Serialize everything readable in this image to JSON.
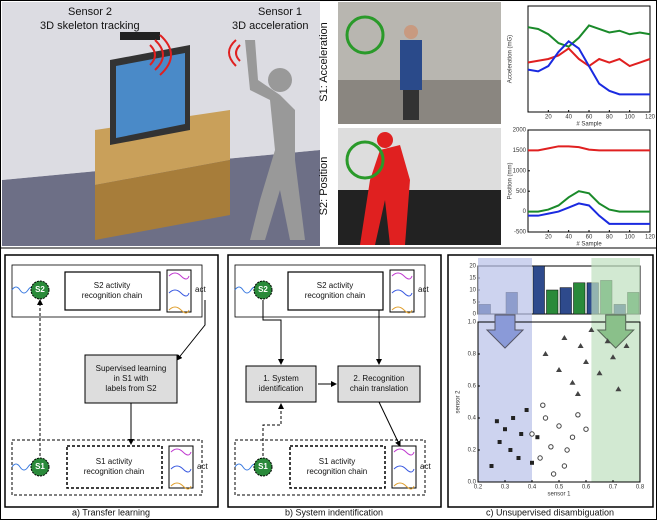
{
  "scene": {
    "sensor2": "Sensor 2",
    "sensor2_desc": "3D skeleton tracking",
    "sensor1": "Sensor 1",
    "sensor1_desc": "3D acceleration"
  },
  "photos": {
    "s1": "S1: Acceleration",
    "s2": "S2: Position"
  },
  "panel_a": {
    "s2": "S2",
    "s2_chain": [
      "S2 activity",
      "recognition chain"
    ],
    "act_top": "act",
    "learning": [
      "Supervised learning",
      "in S1 with",
      "labels from S2"
    ],
    "s1": "S1",
    "s1_chain": [
      "S1 activity",
      "recognition chain"
    ],
    "act_bottom": "act",
    "caption": "a) Transfer learning"
  },
  "panel_b": {
    "s2": "S2",
    "s2_chain": [
      "S2 activity",
      "recognition chain"
    ],
    "act_top": "act",
    "identification": [
      "1. System",
      "identification"
    ],
    "translation": [
      "2. Recognition",
      "chain translation"
    ],
    "s1": "S1",
    "s1_chain": [
      "S1 activity",
      "recognition chain"
    ],
    "act_bottom": "act",
    "caption": "b) System indentification"
  },
  "caption_c": "c) Unsupervised disambiguation",
  "chart_data": [
    {
      "type": "line",
      "ylabel": "Acceleration (mG)",
      "xlabel": "# Sample",
      "x": [
        0,
        10,
        20,
        30,
        40,
        50,
        60,
        70,
        80,
        90,
        100,
        110,
        120
      ],
      "xlim": [
        0,
        120
      ],
      "xticks": [
        20,
        40,
        60,
        80,
        100,
        120
      ],
      "ylim": [
        -1500,
        1500
      ],
      "series": [
        {
          "color": "#1a8a2a",
          "values": [
            900,
            850,
            700,
            450,
            350,
            600,
            950,
            850,
            750,
            800,
            700,
            750,
            700
          ]
        },
        {
          "color": "#e02020",
          "values": [
            -100,
            -50,
            0,
            100,
            300,
            0,
            -200,
            0,
            -100,
            0,
            -200,
            -100,
            0
          ]
        },
        {
          "color": "#1a2ae0",
          "values": [
            -300,
            -350,
            -200,
            200,
            500,
            300,
            -200,
            -700,
            -900,
            -1000,
            -1000,
            -1000,
            -1000
          ]
        }
      ]
    },
    {
      "type": "line",
      "ylabel": "Position (mm)",
      "xlabel": "# Sample",
      "x": [
        0,
        10,
        20,
        30,
        40,
        50,
        60,
        70,
        80,
        90,
        100,
        110,
        120
      ],
      "xlim": [
        0,
        120
      ],
      "xticks": [
        20,
        40,
        60,
        80,
        100,
        120
      ],
      "ylim": [
        -500,
        2000
      ],
      "yticks": [
        -500,
        0,
        500,
        1000,
        1500,
        2000
      ],
      "series": [
        {
          "color": "#e02020",
          "values": [
            1500,
            1500,
            1550,
            1600,
            1600,
            1580,
            1520,
            1500,
            1500,
            1500,
            1500,
            1500,
            1500
          ]
        },
        {
          "color": "#1a8a2a",
          "values": [
            0,
            0,
            50,
            150,
            350,
            500,
            450,
            200,
            50,
            0,
            0,
            0,
            0
          ]
        },
        {
          "color": "#1a2ae0",
          "values": [
            -100,
            -100,
            -50,
            0,
            100,
            200,
            150,
            -100,
            -300,
            -300,
            -300,
            -300,
            -300
          ]
        }
      ]
    },
    {
      "type": "histogram",
      "bins": [
        0.2,
        0.3,
        0.4,
        0.5,
        0.6,
        0.7,
        0.8
      ],
      "ylim": [
        0,
        20
      ],
      "yticks": [
        0,
        5,
        10,
        15,
        20
      ],
      "series": [
        {
          "color": "#2e4a8c",
          "values": [
            4,
            9,
            20,
            11,
            13,
            4
          ]
        },
        {
          "color": "#2a8a3a",
          "values": [
            0,
            0,
            10,
            13,
            14,
            9
          ]
        }
      ]
    },
    {
      "type": "scatter",
      "xlabel": "sensor 1",
      "ylabel": "sensor 2",
      "xlim": [
        0.2,
        0.8
      ],
      "ylim": [
        0,
        1
      ],
      "xticks": [
        0.2,
        0.3,
        0.4,
        0.5,
        0.6,
        0.7,
        0.8
      ],
      "yticks": [
        {
          "value": 0,
          "label": "0.0"
        },
        0.2,
        0.4,
        0.6,
        0.8,
        {
          "value": 1,
          "label": "1.0"
        }
      ],
      "regions": [
        {
          "range": [
            0.2,
            0.4
          ],
          "color": "#b8c0e8"
        },
        {
          "range": [
            0.62,
            0.8
          ],
          "color": "#bfe0bf"
        }
      ],
      "series": [
        {
          "marker": "square",
          "color": "#222",
          "x": [
            0.25,
            0.28,
            0.3,
            0.32,
            0.33,
            0.35,
            0.36,
            0.38,
            0.27,
            0.4,
            0.42
          ],
          "y": [
            0.1,
            0.25,
            0.33,
            0.2,
            0.4,
            0.15,
            0.3,
            0.45,
            0.38,
            0.12,
            0.28
          ]
        },
        {
          "marker": "triangle",
          "color": "#444",
          "x": [
            0.45,
            0.5,
            0.52,
            0.55,
            0.58,
            0.6,
            0.62,
            0.65,
            0.68,
            0.7,
            0.72,
            0.75,
            0.57
          ],
          "y": [
            0.8,
            0.7,
            0.9,
            0.62,
            0.85,
            0.75,
            0.95,
            0.68,
            0.88,
            0.78,
            0.58,
            0.85,
            0.55
          ]
        },
        {
          "marker": "circle",
          "color": "#444",
          "x": [
            0.4,
            0.43,
            0.45,
            0.47,
            0.5,
            0.52,
            0.55,
            0.57,
            0.48,
            0.53,
            0.6,
            0.44
          ],
          "y": [
            0.3,
            0.15,
            0.4,
            0.22,
            0.35,
            0.1,
            0.28,
            0.42,
            0.05,
            0.2,
            0.33,
            0.48
          ]
        }
      ]
    }
  ]
}
